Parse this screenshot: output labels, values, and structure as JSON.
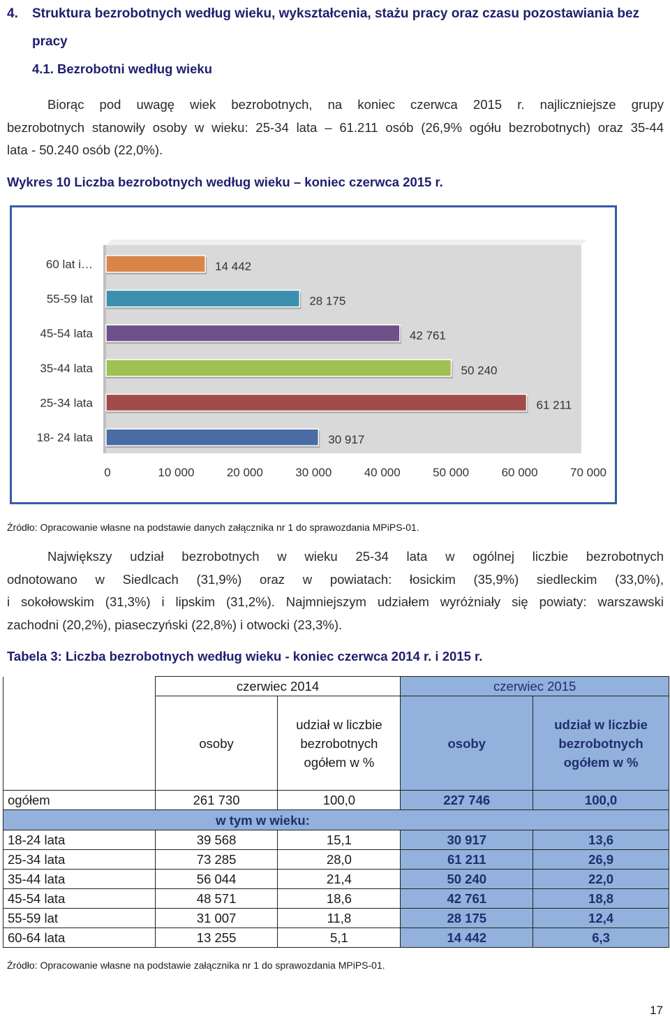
{
  "section": {
    "number": "4.",
    "title_line1": "Struktura bezrobotnych według wieku, wykształcenia, stażu pracy oraz czasu pozostawiania bez",
    "title_line2": "pracy",
    "subsection": "4.1. Bezrobotni według wieku"
  },
  "intro_paragraph": {
    "line1": "Biorąc pod uwagę wiek bezrobotnych, na koniec czerwca 2015 r. najliczniejsze grupy",
    "line2": "bezrobotnych stanowiły osoby w wieku: 25-34 lata – 61.211 osób (26,9% ogółu bezrobotnych) oraz 35-44",
    "line3": "lata - 50.240 osób (22,0%)."
  },
  "chart_caption": "Wykres 10 Liczba bezrobotnych według wieku – koniec czerwca 2015 r.",
  "chart_data": {
    "type": "bar",
    "orientation": "horizontal",
    "categories": [
      "60 lat i…",
      "55-59 lat",
      "45-54 lata",
      "35-44 lata",
      "25-34 lata",
      "18- 24 lata"
    ],
    "values": [
      14442,
      28175,
      42761,
      50240,
      61211,
      30917
    ],
    "value_labels": [
      "14 442",
      "28 175",
      "42 761",
      "50 240",
      "61 211",
      "30 917"
    ],
    "colors": [
      "#d9854a",
      "#3a8fae",
      "#6e5189",
      "#9fc052",
      "#a24b4a",
      "#4a6ca6"
    ],
    "xlim": [
      0,
      70000
    ],
    "x_ticks": [
      0,
      10000,
      20000,
      30000,
      40000,
      50000,
      60000,
      70000
    ],
    "x_tick_labels": [
      "0",
      "10 000",
      "20 000",
      "30 000",
      "40 000",
      "50 000",
      "60 000",
      "70 000"
    ],
    "grid": false,
    "title": "",
    "xlabel": "",
    "ylabel": ""
  },
  "chart_source": "Źródło: Opracowanie własne na podstawie danych załącznika nr 1 do sprawozdania MPiPS-01.",
  "second_paragraph": {
    "line1": "Największy udział bezrobotnych w wieku 25-34 lata w ogólnej liczbie bezrobotnych",
    "line2": "odnotowano w Siedlcach (31,9%) oraz w powiatach: łosickim (35,9%) siedleckim (33,0%),",
    "line3": "i sokołowskim (31,3%) i lipskim (31,2%). Najmniejszym udziałem wyróżniały się powiaty: warszawski",
    "line4": "zachodni (20,2%), piaseczyński (22,8%) i otwocki (23,3%)."
  },
  "table_caption": "Tabela 3: Liczba bezrobotnych według wieku - koniec czerwca 2014 r. i 2015 r.",
  "table": {
    "head_2014": "czerwiec 2014",
    "head_2015": "czerwiec 2015",
    "col_osoby": "osoby",
    "col_udzial_l1": "udział w liczbie",
    "col_udzial_l2": "bezrobotnych",
    "col_udzial_l3": "ogółem w %",
    "total": {
      "label": "ogółem",
      "o2014": "261 730",
      "u2014": "100,0",
      "o2015": "227 746",
      "u2015": "100,0"
    },
    "subheader": "w tym w wieku:",
    "rows": [
      {
        "label": "18-24 lata",
        "o2014": "39 568",
        "u2014": "15,1",
        "o2015": "30 917",
        "u2015": "13,6"
      },
      {
        "label": "25-34 lata",
        "o2014": "73 285",
        "u2014": "28,0",
        "o2015": "61 211",
        "u2015": "26,9"
      },
      {
        "label": "35-44 lata",
        "o2014": "56 044",
        "u2014": "21,4",
        "o2015": "50 240",
        "u2015": "22,0"
      },
      {
        "label": "45-54 lata",
        "o2014": "48 571",
        "u2014": "18,6",
        "o2015": "42 761",
        "u2015": "18,8"
      },
      {
        "label": "55-59 lat",
        "o2014": "31 007",
        "u2014": "11,8",
        "o2015": "28 175",
        "u2015": "12,4"
      },
      {
        "label": "60-64 lata",
        "o2014": "13 255",
        "u2014": "5,1",
        "o2015": "14 442",
        "u2015": "6,3"
      }
    ]
  },
  "table_source": "Źródło: Opracowanie własne na podstawie załącznika nr 1 do sprawozdania MPiPS-01.",
  "page_number": "17"
}
